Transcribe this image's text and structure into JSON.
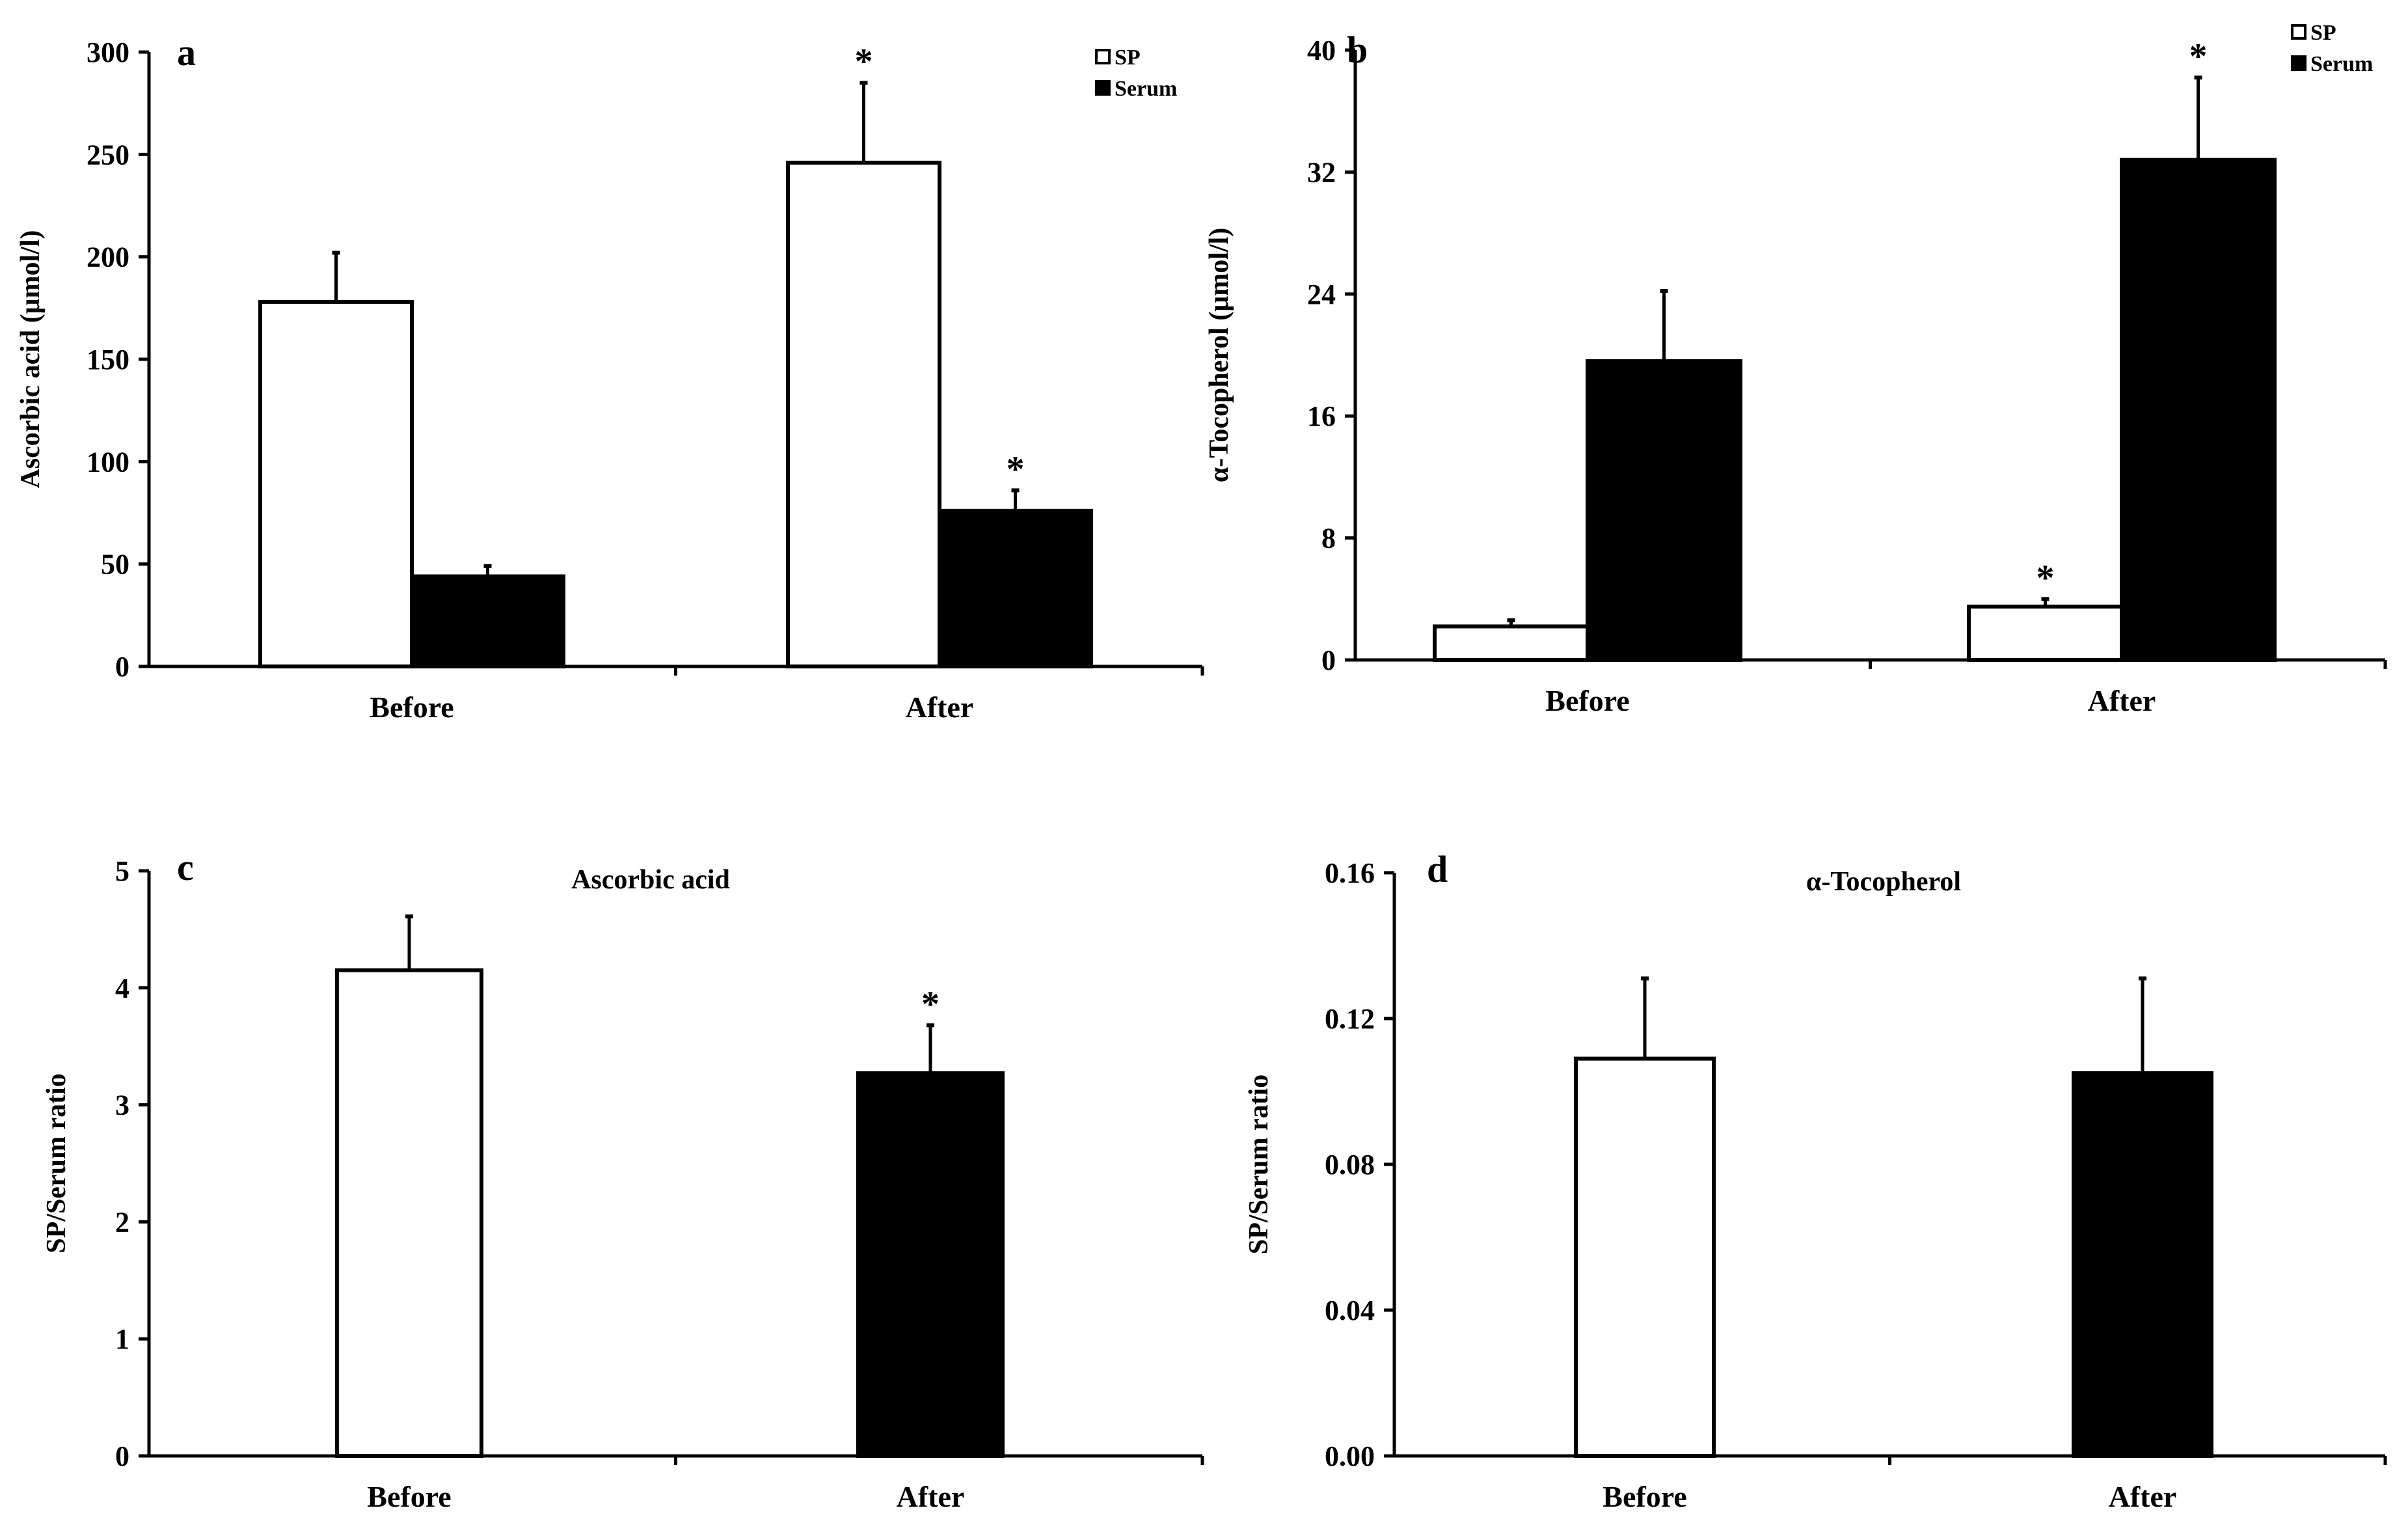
{
  "colors": {
    "sp_fill": "#ffffff",
    "serum_fill": "#000000",
    "stroke": "#000000"
  },
  "chart_data": [
    {
      "panel": "a",
      "type": "bar",
      "title": "",
      "xlabel": "",
      "ylabel": "Ascorbic acid (μmol/l)",
      "ylim": [
        0,
        300
      ],
      "yticks": [
        0,
        50,
        100,
        150,
        200,
        250,
        300
      ],
      "tick_labels": [
        "0",
        "50",
        "100",
        "150",
        "200",
        "250",
        "300"
      ],
      "categories": [
        "Before",
        "After"
      ],
      "legend_position": "top-right",
      "series": [
        {
          "name": "SP",
          "values": [
            178,
            246
          ],
          "errors": [
            24,
            39
          ],
          "significant": [
            false,
            true
          ]
        },
        {
          "name": "Serum",
          "values": [
            44,
            76
          ],
          "errors": [
            5,
            10
          ],
          "significant": [
            false,
            true
          ]
        }
      ],
      "marker": "*"
    },
    {
      "panel": "b",
      "type": "bar",
      "title": "",
      "xlabel": "",
      "ylabel": "α-Tocopherol (μmol/l)",
      "ylim": [
        0,
        40
      ],
      "yticks": [
        0,
        8,
        16,
        24,
        32,
        40
      ],
      "tick_labels": [
        "0",
        "8",
        "16",
        "24",
        "32",
        "40"
      ],
      "categories": [
        "Before",
        "After"
      ],
      "legend_position": "top-right",
      "series": [
        {
          "name": "SP",
          "values": [
            2.2,
            3.5
          ],
          "errors": [
            0.4,
            0.5
          ],
          "significant": [
            false,
            true
          ]
        },
        {
          "name": "Serum",
          "values": [
            19.6,
            32.8
          ],
          "errors": [
            4.6,
            5.4
          ],
          "significant": [
            false,
            true
          ]
        }
      ],
      "marker": "*"
    },
    {
      "panel": "c",
      "type": "bar",
      "title": "Ascorbic acid",
      "xlabel": "",
      "ylabel": "SP/Serum ratio",
      "ylim": [
        0,
        5
      ],
      "yticks": [
        0,
        1,
        2,
        3,
        4,
        5
      ],
      "tick_labels": [
        "0",
        "1",
        "2",
        "3",
        "4",
        "5"
      ],
      "categories": [
        "Before",
        "After"
      ],
      "bar_fills": [
        "sp_fill",
        "serum_fill"
      ],
      "values": [
        4.15,
        3.27
      ],
      "errors": [
        0.46,
        0.41
      ],
      "significant": [
        false,
        true
      ],
      "marker": "*"
    },
    {
      "panel": "d",
      "type": "bar",
      "title": "α-Tocopherol",
      "xlabel": "",
      "ylabel": "SP/Serum ratio",
      "ylim": [
        0,
        0.16
      ],
      "yticks": [
        0,
        0.04,
        0.08,
        0.12,
        0.16
      ],
      "tick_labels": [
        "0.00",
        "0.04",
        "0.08",
        "0.12",
        "0.16"
      ],
      "categories": [
        "Before",
        "After"
      ],
      "bar_fills": [
        "sp_fill",
        "serum_fill"
      ],
      "values": [
        0.109,
        0.105
      ],
      "errors": [
        0.022,
        0.026
      ],
      "significant": [
        false,
        false
      ],
      "marker": "*"
    }
  ]
}
